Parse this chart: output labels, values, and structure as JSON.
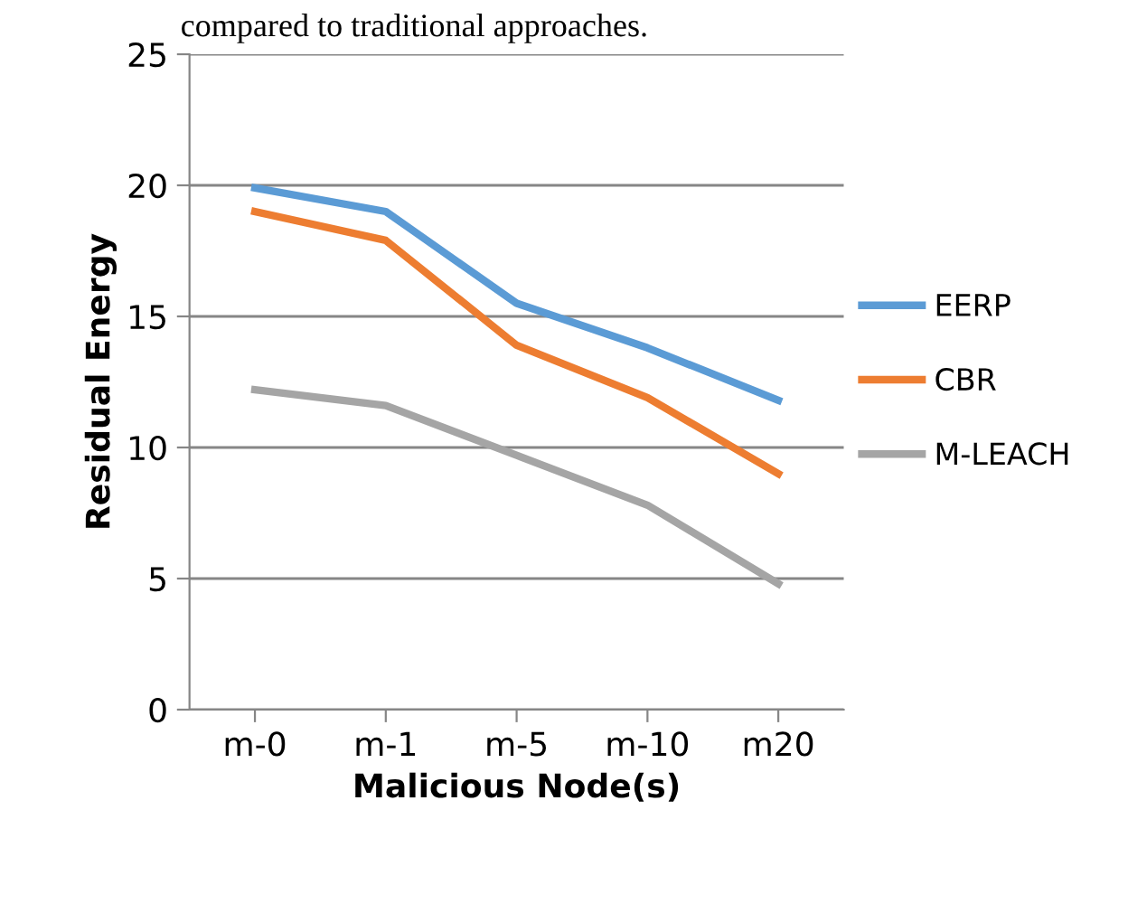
{
  "chart_data": {
    "type": "line",
    "xlabel": "Malicious Node(s)",
    "ylabel": "Residual Energy",
    "annotations": [
      "compared to traditional approaches."
    ],
    "categories": [
      "m-0",
      "m-1",
      "m-5",
      "m-10",
      "m20"
    ],
    "series": [
      {
        "name": "EERP",
        "color": "#5b9bd5",
        "values": [
          19.9,
          19.0,
          15.5,
          13.8,
          11.8
        ]
      },
      {
        "name": "CBR",
        "color": "#ed7d31",
        "values": [
          19.0,
          17.9,
          13.9,
          11.9,
          9.0
        ]
      },
      {
        "name": "M-LEACH",
        "color": "#a5a5a5",
        "values": [
          12.2,
          11.6,
          9.7,
          7.8,
          4.8
        ]
      }
    ],
    "ylim": [
      0,
      25
    ],
    "yticks": [
      0,
      5,
      10,
      15,
      20,
      25
    ],
    "grid": "y",
    "legend": "right",
    "marker": "none",
    "line_style": "solid"
  }
}
